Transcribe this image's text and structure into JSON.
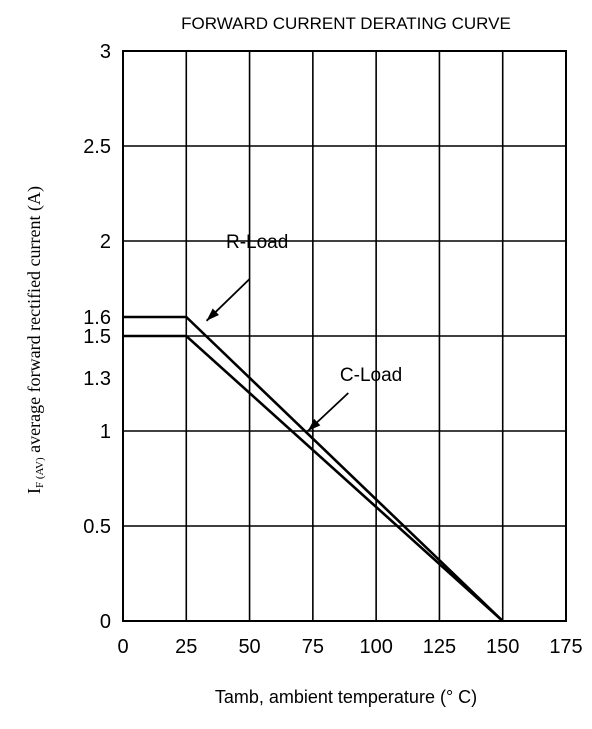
{
  "chart_data": {
    "type": "line",
    "title": "FORWARD CURRENT  DERATING  CURVE",
    "xlabel": "Tamb, ambient temperature (° C)",
    "ylabel": {
      "symbol": "I",
      "subscript": "F (AV)",
      "text": "average forward rectified current (A)"
    },
    "xlim": [
      0,
      175
    ],
    "ylim": [
      0,
      3
    ],
    "grid": true,
    "x_ticks": [
      "0",
      "25",
      "50",
      "75",
      "100",
      "125",
      "150",
      "175"
    ],
    "x_tick_values": [
      0,
      25,
      50,
      75,
      100,
      125,
      150,
      175
    ],
    "y_ticks": [
      "0",
      "0.5",
      "1",
      "1.3",
      "1.5",
      "1.6",
      "2",
      "2.5",
      "3"
    ],
    "y_tick_values": [
      0,
      0.5,
      1,
      1.3,
      1.5,
      1.6,
      2,
      2.5,
      3
    ],
    "gridlines_y": [
      0.5,
      1,
      1.5,
      2,
      2.5
    ],
    "gridlines_x": [
      25,
      50,
      75,
      100,
      125,
      150
    ],
    "series": [
      {
        "name": "R-Load",
        "x": [
          0,
          25,
          150
        ],
        "y": [
          1.6,
          1.6,
          0
        ]
      },
      {
        "name": "C-Load",
        "x": [
          0,
          25,
          150
        ],
        "y": [
          1.5,
          1.5,
          0
        ]
      }
    ],
    "annotations": [
      {
        "text": "R-Load",
        "text_x": 53,
        "text_y": 2.0,
        "arrow_from": [
          50,
          1.8
        ],
        "arrow_to": [
          33,
          1.58
        ]
      },
      {
        "text": "C-Load",
        "text_x": 98,
        "text_y": 1.3,
        "arrow_from": [
          89,
          1.2
        ],
        "arrow_to": [
          73,
          1.0
        ]
      }
    ]
  }
}
